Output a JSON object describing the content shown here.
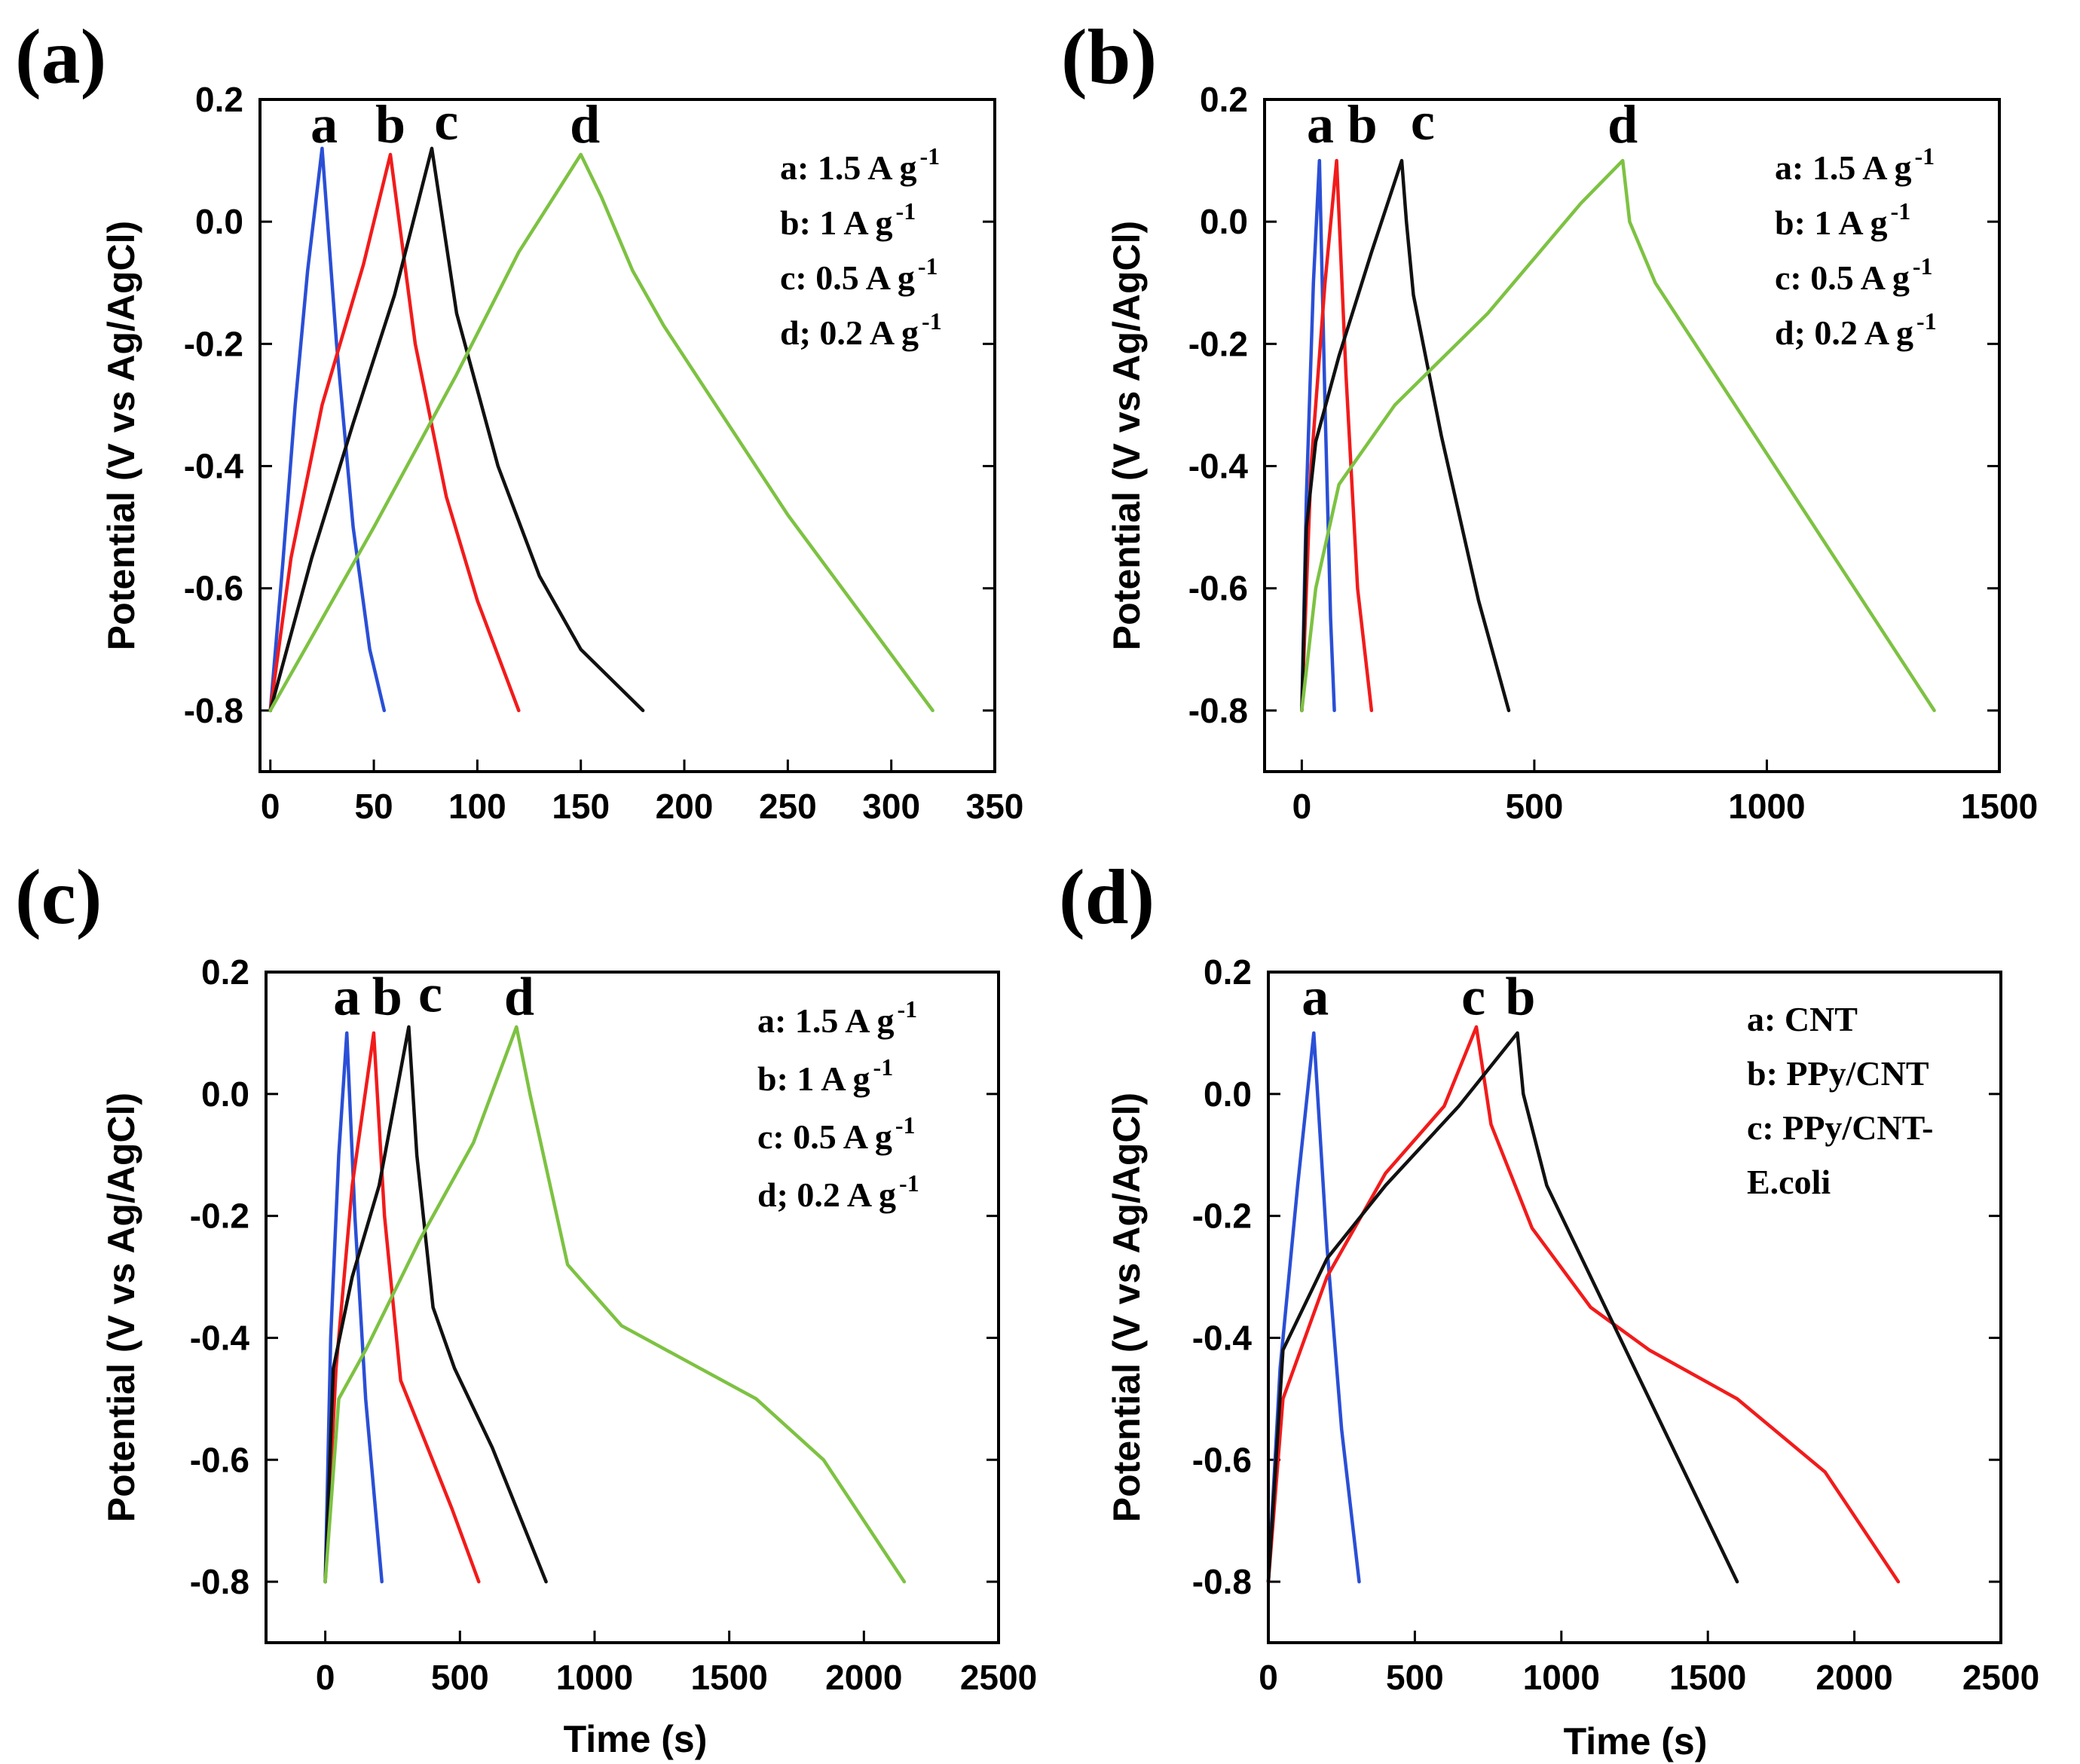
{
  "figure": {
    "ylabel": "Potential (V vs Ag/AgCl)",
    "xlabel": "Time (s)",
    "colors": {
      "blue": "#2a4fd6",
      "red": "#f21b1b",
      "black": "#111111",
      "green": "#7dc242"
    }
  },
  "chart_data": [
    {
      "type": "line",
      "panel": "(a)",
      "ylabel": "Potential (V vs Ag/AgCl)",
      "xlabel": "",
      "xlim": [
        -5,
        350
      ],
      "ylim": [
        -0.9,
        0.2
      ],
      "xticks": [
        0,
        50,
        100,
        150,
        200,
        250,
        300,
        350
      ],
      "yticks": [
        0.2,
        0.0,
        -0.2,
        -0.4,
        -0.6,
        -0.8
      ],
      "legend": [
        "a: 1.5 A g",
        "b: 1 A g",
        "c: 0.5 A g",
        "d; 0.2 A g"
      ],
      "legend_superscripts": [
        "-1",
        "-1",
        "-1",
        "-1"
      ],
      "series": [
        {
          "name": "a",
          "color": "#2a4fd6",
          "x": [
            0,
            6,
            12,
            18,
            25,
            32,
            40,
            48,
            55
          ],
          "y": [
            -0.8,
            -0.56,
            -0.3,
            -0.08,
            0.12,
            -0.2,
            -0.5,
            -0.7,
            -0.8
          ]
        },
        {
          "name": "b",
          "color": "#f21b1b",
          "x": [
            0,
            10,
            25,
            45,
            58,
            70,
            85,
            100,
            120
          ],
          "y": [
            -0.8,
            -0.55,
            -0.3,
            -0.07,
            0.11,
            -0.2,
            -0.45,
            -0.62,
            -0.8
          ]
        },
        {
          "name": "c",
          "color": "#111111",
          "x": [
            0,
            20,
            40,
            60,
            78,
            90,
            110,
            130,
            150,
            180
          ],
          "y": [
            -0.8,
            -0.55,
            -0.33,
            -0.12,
            0.12,
            -0.15,
            -0.4,
            -0.58,
            -0.7,
            -0.8
          ]
        },
        {
          "name": "d",
          "color": "#7dc242",
          "x": [
            0,
            20,
            50,
            90,
            120,
            150,
            160,
            175,
            190,
            250,
            320
          ],
          "y": [
            -0.8,
            -0.68,
            -0.5,
            -0.25,
            -0.05,
            0.11,
            0.04,
            -0.08,
            -0.17,
            -0.48,
            -0.8
          ]
        }
      ],
      "curve_labels": [
        {
          "text": "a",
          "x": 26,
          "y": 0.12
        },
        {
          "text": "b",
          "x": 58,
          "y": 0.12
        },
        {
          "text": "c",
          "x": 85,
          "y": 0.125
        },
        {
          "text": "d",
          "x": 152,
          "y": 0.12
        }
      ]
    },
    {
      "type": "line",
      "panel": "(b)",
      "ylabel": "Potential (V vs Ag/AgCl)",
      "xlabel": "",
      "xlim": [
        -80,
        1500
      ],
      "ylim": [
        -0.9,
        0.2
      ],
      "xticks": [
        0,
        500,
        1000,
        1500
      ],
      "yticks": [
        0.2,
        0.0,
        -0.2,
        -0.4,
        -0.6,
        -0.8
      ],
      "legend": [
        "a: 1.5 A g",
        "b: 1 A g",
        "c: 0.5 A g",
        "d; 0.2 A g"
      ],
      "legend_superscripts": [
        "-1",
        "-1",
        "-1",
        "-1"
      ],
      "series": [
        {
          "name": "a",
          "color": "#2a4fd6",
          "x": [
            0,
            10,
            25,
            38,
            50,
            62,
            70
          ],
          "y": [
            -0.8,
            -0.45,
            -0.1,
            0.1,
            -0.3,
            -0.65,
            -0.8
          ]
        },
        {
          "name": "b",
          "color": "#f21b1b",
          "x": [
            0,
            20,
            50,
            75,
            95,
            120,
            150
          ],
          "y": [
            -0.8,
            -0.4,
            -0.1,
            0.1,
            -0.25,
            -0.6,
            -0.8
          ]
        },
        {
          "name": "c",
          "color": "#111111",
          "x": [
            0,
            10,
            30,
            80,
            150,
            215,
            225,
            240,
            300,
            380,
            445
          ],
          "y": [
            -0.8,
            -0.5,
            -0.36,
            -0.22,
            -0.05,
            0.1,
            0.0,
            -0.12,
            -0.35,
            -0.62,
            -0.8
          ]
        },
        {
          "name": "d",
          "color": "#7dc242",
          "x": [
            0,
            30,
            80,
            200,
            400,
            600,
            690,
            705,
            760,
            1000,
            1360
          ],
          "y": [
            -0.8,
            -0.6,
            -0.43,
            -0.3,
            -0.15,
            0.03,
            0.1,
            0.0,
            -0.1,
            -0.38,
            -0.8
          ]
        }
      ],
      "curve_labels": [
        {
          "text": "a",
          "x": 40,
          "y": 0.12
        },
        {
          "text": "b",
          "x": 130,
          "y": 0.12
        },
        {
          "text": "c",
          "x": 260,
          "y": 0.125
        },
        {
          "text": "d",
          "x": 690,
          "y": 0.12
        }
      ]
    },
    {
      "type": "line",
      "panel": "(c)",
      "ylabel": "Potential (V vs Ag/AgCl)",
      "xlabel": "Time (s)",
      "xlim": [
        -220,
        2500
      ],
      "ylim": [
        -0.9,
        0.2
      ],
      "xticks": [
        0,
        500,
        1000,
        1500,
        2000,
        2500
      ],
      "yticks": [
        0.2,
        0.0,
        -0.2,
        -0.4,
        -0.6,
        -0.8
      ],
      "legend": [
        "a: 1.5 A g",
        "b: 1 A g",
        "c: 0.5 A g",
        "d; 0.2 A g"
      ],
      "legend_superscripts": [
        "-1",
        "-1",
        "-1",
        "-1"
      ],
      "series": [
        {
          "name": "a",
          "color": "#2a4fd6",
          "x": [
            0,
            20,
            50,
            80,
            110,
            150,
            210
          ],
          "y": [
            -0.8,
            -0.4,
            -0.1,
            0.1,
            -0.2,
            -0.5,
            -0.8
          ]
        },
        {
          "name": "b",
          "color": "#f21b1b",
          "x": [
            0,
            40,
            100,
            180,
            220,
            280,
            380,
            470,
            570
          ],
          "y": [
            -0.8,
            -0.45,
            -0.15,
            0.1,
            -0.2,
            -0.47,
            -0.58,
            -0.68,
            -0.8
          ]
        },
        {
          "name": "c",
          "color": "#111111",
          "x": [
            0,
            30,
            100,
            200,
            310,
            340,
            400,
            480,
            620,
            820
          ],
          "y": [
            -0.8,
            -0.45,
            -0.3,
            -0.15,
            0.11,
            -0.1,
            -0.35,
            -0.45,
            -0.58,
            -0.8
          ]
        },
        {
          "name": "d",
          "color": "#7dc242",
          "x": [
            0,
            50,
            150,
            350,
            550,
            710,
            760,
            900,
            1100,
            1350,
            1600,
            1850,
            2150
          ],
          "y": [
            -0.8,
            -0.5,
            -0.42,
            -0.24,
            -0.08,
            0.11,
            0.0,
            -0.28,
            -0.38,
            -0.44,
            -0.5,
            -0.6,
            -0.8
          ]
        }
      ],
      "curve_labels": [
        {
          "text": "a",
          "x": 80,
          "y": 0.12
        },
        {
          "text": "b",
          "x": 230,
          "y": 0.12
        },
        {
          "text": "c",
          "x": 390,
          "y": 0.125
        },
        {
          "text": "d",
          "x": 720,
          "y": 0.12
        }
      ]
    },
    {
      "type": "line",
      "panel": "(d)",
      "ylabel": "Potential (V vs Ag/AgCl)",
      "xlabel": "Time (s)",
      "xlim": [
        0,
        2500
      ],
      "ylim": [
        -0.9,
        0.2
      ],
      "xticks": [
        0,
        500,
        1000,
        1500,
        2000,
        2500
      ],
      "yticks": [
        0.2,
        0.0,
        -0.2,
        -0.4,
        -0.6,
        -0.8
      ],
      "legend": [
        "a: CNT",
        "b: PPy/CNT",
        "c: PPy/CNT-",
        "E.coli"
      ],
      "legend_superscripts": [
        "",
        "",
        "",
        ""
      ],
      "series": [
        {
          "name": "a",
          "color": "#2a4fd6",
          "x": [
            0,
            40,
            100,
            155,
            200,
            250,
            310
          ],
          "y": [
            -0.8,
            -0.45,
            -0.15,
            0.1,
            -0.25,
            -0.55,
            -0.8
          ]
        },
        {
          "name": "c",
          "color": "#f21b1b",
          "x": [
            0,
            50,
            200,
            400,
            600,
            710,
            760,
            900,
            1100,
            1300,
            1600,
            1900,
            2150
          ],
          "y": [
            -0.8,
            -0.5,
            -0.3,
            -0.13,
            -0.02,
            0.11,
            -0.05,
            -0.22,
            -0.35,
            -0.42,
            -0.5,
            -0.62,
            -0.8
          ]
        },
        {
          "name": "b",
          "color": "#111111",
          "x": [
            0,
            50,
            200,
            400,
            650,
            850,
            870,
            950,
            1100,
            1300,
            1600
          ],
          "y": [
            -0.8,
            -0.42,
            -0.27,
            -0.15,
            -0.02,
            0.1,
            0.0,
            -0.15,
            -0.3,
            -0.5,
            -0.8
          ]
        }
      ],
      "curve_labels": [
        {
          "text": "a",
          "x": 160,
          "y": 0.12
        },
        {
          "text": "c",
          "x": 700,
          "y": 0.12
        },
        {
          "text": "b",
          "x": 860,
          "y": 0.12
        }
      ]
    }
  ]
}
